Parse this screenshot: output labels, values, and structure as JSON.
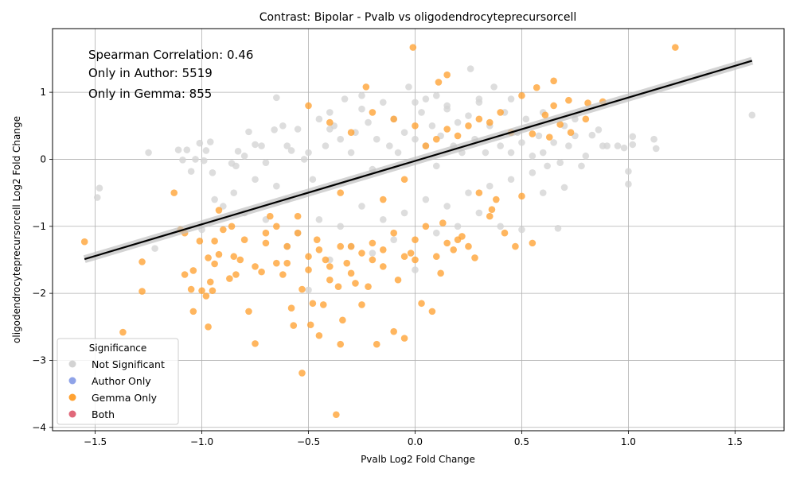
{
  "chart_data": {
    "type": "scatter",
    "title": "Contrast: Bipolar - Pvalb vs oligodendrocyteprecursorcell",
    "xlabel": "Pvalb Log2 Fold Change",
    "ylabel": "oligodendrocyteprecursorcell Log2 Fold Change",
    "xlim": [
      -1.7,
      1.73
    ],
    "ylim": [
      -4.05,
      1.95
    ],
    "xticks": [
      -1.5,
      -1.0,
      -0.5,
      0.0,
      0.5,
      1.0,
      1.5
    ],
    "xtick_labels": [
      "−1.5",
      "−1.0",
      "−0.5",
      "0.0",
      "0.5",
      "1.0",
      "1.5"
    ],
    "yticks": [
      -4,
      -3,
      -2,
      -1,
      0,
      1
    ],
    "ytick_labels": [
      "−4",
      "−3",
      "−2",
      "−1",
      "0",
      "1"
    ],
    "grid": true,
    "annotations": [
      "Spearman Correlation: 0.46",
      "Only in Author: 5519",
      "Only in Gemma: 855"
    ],
    "legend": {
      "title": "Significance",
      "placement": "lower-left",
      "entries": [
        {
          "label": "Not Significant",
          "color": "#d3d3d3"
        },
        {
          "label": "Author Only",
          "color": "#8fa3e8"
        },
        {
          "label": "Gemma Only",
          "color": "#ffa232"
        },
        {
          "label": "Both",
          "color": "#e0687a"
        }
      ]
    },
    "regression_line": {
      "x": [
        -1.55,
        1.58
      ],
      "y": [
        -1.49,
        1.47
      ],
      "color": "#000000"
    },
    "series": [
      {
        "name": "Not Significant",
        "color": "#d3d3d3",
        "points": [
          [
            -1.49,
            -0.57
          ],
          [
            -1.48,
            -0.43
          ],
          [
            -1.25,
            0.1
          ],
          [
            -1.22,
            -1.33
          ],
          [
            -1.11,
            0.14
          ],
          [
            -1.09,
            -0.01
          ],
          [
            -1.07,
            0.14
          ],
          [
            -1.05,
            -0.18
          ],
          [
            -1.03,
            0.0
          ],
          [
            -1.01,
            0.24
          ],
          [
            -0.99,
            -0.02
          ],
          [
            -0.98,
            0.13
          ],
          [
            -0.96,
            0.26
          ],
          [
            -0.94,
            -0.6
          ],
          [
            -0.86,
            -0.06
          ],
          [
            -0.84,
            -0.1
          ],
          [
            -0.83,
            0.12
          ],
          [
            -0.8,
            0.05
          ],
          [
            -0.78,
            0.41
          ],
          [
            -0.75,
            0.22
          ],
          [
            -0.72,
            0.2
          ],
          [
            -0.7,
            -0.05
          ],
          [
            -0.66,
            0.44
          ],
          [
            -0.65,
            0.92
          ],
          [
            -0.62,
            0.5
          ],
          [
            -0.6,
            0.2
          ],
          [
            -0.58,
            0.13
          ],
          [
            -0.55,
            0.45
          ],
          [
            -0.52,
            0.0
          ],
          [
            -0.5,
            0.1
          ],
          [
            -0.48,
            -0.3
          ],
          [
            -0.45,
            0.6
          ],
          [
            -0.42,
            0.2
          ],
          [
            -0.4,
            0.7
          ],
          [
            -0.38,
            0.5
          ],
          [
            -0.35,
            0.3
          ],
          [
            -0.33,
            0.9
          ],
          [
            -0.3,
            0.1
          ],
          [
            -0.28,
            0.4
          ],
          [
            -0.25,
            0.75
          ],
          [
            -0.22,
            0.55
          ],
          [
            -0.2,
            -0.15
          ],
          [
            -0.18,
            0.3
          ],
          [
            -0.15,
            0.85
          ],
          [
            -0.12,
            0.2
          ],
          [
            -0.1,
            0.6
          ],
          [
            -0.08,
            0.1
          ],
          [
            -0.05,
            0.4
          ],
          [
            -0.03,
            1.08
          ],
          [
            0.0,
            0.3
          ],
          [
            0.03,
            0.7
          ],
          [
            0.05,
            0.2
          ],
          [
            0.08,
            0.5
          ],
          [
            0.1,
            -0.1
          ],
          [
            0.12,
            0.35
          ],
          [
            0.15,
            0.8
          ],
          [
            0.18,
            0.2
          ],
          [
            0.2,
            0.55
          ],
          [
            0.22,
            0.1
          ],
          [
            0.25,
            0.65
          ],
          [
            0.26,
            1.35
          ],
          [
            0.28,
            0.3
          ],
          [
            0.3,
            0.9
          ],
          [
            0.33,
            0.1
          ],
          [
            0.35,
            0.5
          ],
          [
            0.37,
            1.08
          ],
          [
            0.4,
            0.2
          ],
          [
            0.42,
            0.7
          ],
          [
            0.45,
            0.1
          ],
          [
            0.48,
            0.4
          ],
          [
            0.5,
            0.25
          ],
          [
            0.52,
            0.6
          ],
          [
            0.55,
            0.05
          ],
          [
            0.58,
            0.35
          ],
          [
            0.6,
            0.1
          ],
          [
            0.62,
            -0.1
          ],
          [
            0.65,
            0.25
          ],
          [
            0.68,
            -0.05
          ],
          [
            0.7,
            -0.42
          ],
          [
            0.72,
            0.2
          ],
          [
            0.75,
            0.35
          ],
          [
            0.78,
            -0.1
          ],
          [
            0.8,
            0.05
          ],
          [
            0.83,
            0.36
          ],
          [
            0.86,
            0.44
          ],
          [
            0.88,
            0.2
          ],
          [
            0.9,
            0.2
          ],
          [
            0.95,
            0.2
          ],
          [
            0.98,
            0.17
          ],
          [
            1.0,
            -0.18
          ],
          [
            1.0,
            -0.37
          ],
          [
            1.02,
            0.34
          ],
          [
            1.02,
            0.22
          ],
          [
            1.12,
            0.3
          ],
          [
            1.13,
            0.16
          ],
          [
            1.58,
            0.66
          ],
          [
            -0.5,
            -1.95
          ],
          [
            -0.4,
            -1.5
          ],
          [
            -0.3,
            -1.3
          ],
          [
            -0.2,
            -1.4
          ],
          [
            -0.1,
            -1.2
          ],
          [
            0.0,
            -1.65
          ],
          [
            0.1,
            -1.1
          ],
          [
            0.2,
            -1.0
          ],
          [
            0.3,
            -0.8
          ],
          [
            0.4,
            -1.0
          ],
          [
            0.5,
            -1.05
          ],
          [
            0.6,
            -0.5
          ],
          [
            0.67,
            -1.03
          ],
          [
            -0.6,
            -1.3
          ],
          [
            -0.7,
            -0.9
          ],
          [
            -0.8,
            -0.8
          ],
          [
            -0.9,
            -0.7
          ],
          [
            -1.0,
            -1.05
          ],
          [
            -0.55,
            -1.1
          ],
          [
            -0.45,
            -0.9
          ],
          [
            -0.35,
            -1.0
          ],
          [
            -0.25,
            -0.7
          ],
          [
            -0.15,
            -0.9
          ],
          [
            -0.05,
            -0.8
          ],
          [
            0.05,
            -0.6
          ],
          [
            0.15,
            -0.7
          ],
          [
            0.25,
            -0.5
          ],
          [
            0.35,
            -0.4
          ],
          [
            0.45,
            -0.3
          ],
          [
            0.55,
            -0.2
          ],
          [
            -0.65,
            -0.4
          ],
          [
            -0.75,
            -0.3
          ],
          [
            -0.85,
            -0.5
          ],
          [
            -0.95,
            -0.2
          ],
          [
            0.0,
            0.85
          ],
          [
            0.05,
            0.9
          ],
          [
            0.3,
            0.85
          ],
          [
            -0.25,
            0.95
          ],
          [
            0.1,
            0.95
          ],
          [
            0.15,
            0.75
          ],
          [
            0.45,
            0.9
          ],
          [
            0.6,
            0.7
          ],
          [
            -0.4,
            0.45
          ],
          [
            -0.6,
            -0.6
          ],
          [
            0.7,
            0.5
          ],
          [
            0.75,
            0.6
          ]
        ]
      },
      {
        "name": "Gemma Only",
        "color": "#ffa232",
        "points": [
          [
            -1.55,
            -1.23
          ],
          [
            -1.37,
            -2.58
          ],
          [
            -1.28,
            -1.53
          ],
          [
            -1.28,
            -1.97
          ],
          [
            -1.13,
            -0.5
          ],
          [
            -1.08,
            -1.72
          ],
          [
            -1.08,
            -1.1
          ],
          [
            -1.05,
            -1.94
          ],
          [
            -1.04,
            -2.27
          ],
          [
            -1.04,
            -1.66
          ],
          [
            -1.01,
            -1.22
          ],
          [
            -1.0,
            -1.96
          ],
          [
            -0.98,
            -2.04
          ],
          [
            -0.97,
            -1.47
          ],
          [
            -0.97,
            -2.5
          ],
          [
            -0.96,
            -1.83
          ],
          [
            -0.95,
            -1.96
          ],
          [
            -0.94,
            -1.56
          ],
          [
            -0.94,
            -1.22
          ],
          [
            -0.92,
            -0.76
          ],
          [
            -0.92,
            -1.42
          ],
          [
            -0.87,
            -1.78
          ],
          [
            -0.86,
            -1.0
          ],
          [
            -0.85,
            -1.45
          ],
          [
            -0.84,
            -1.72
          ],
          [
            -0.82,
            -1.5
          ],
          [
            -0.78,
            -2.27
          ],
          [
            -0.75,
            -2.75
          ],
          [
            -0.75,
            -1.6
          ],
          [
            -0.72,
            -1.68
          ],
          [
            -0.7,
            -1.25
          ],
          [
            -0.68,
            -0.85
          ],
          [
            -0.65,
            -1.55
          ],
          [
            -0.62,
            -1.72
          ],
          [
            -0.6,
            -1.3
          ],
          [
            -0.58,
            -2.22
          ],
          [
            -0.57,
            -2.48
          ],
          [
            -0.55,
            -1.1
          ],
          [
            -0.53,
            -1.94
          ],
          [
            -0.53,
            -3.19
          ],
          [
            -0.5,
            -1.65
          ],
          [
            -0.49,
            -2.47
          ],
          [
            -0.48,
            -2.15
          ],
          [
            -0.46,
            -1.2
          ],
          [
            -0.45,
            -2.63
          ],
          [
            -0.43,
            -2.17
          ],
          [
            -0.42,
            -1.5
          ],
          [
            -0.4,
            -1.8
          ],
          [
            -0.37,
            -3.81
          ],
          [
            -0.36,
            -1.9
          ],
          [
            -0.35,
            -2.76
          ],
          [
            -0.34,
            -2.4
          ],
          [
            -0.32,
            -1.55
          ],
          [
            -0.3,
            -1.7
          ],
          [
            -0.28,
            -1.85
          ],
          [
            -0.25,
            -2.17
          ],
          [
            -0.22,
            -1.9
          ],
          [
            -0.2,
            -1.5
          ],
          [
            -0.18,
            -2.76
          ],
          [
            -0.15,
            -1.6
          ],
          [
            -0.1,
            -2.57
          ],
          [
            -0.08,
            -1.8
          ],
          [
            -0.05,
            -2.67
          ],
          [
            -0.02,
            -1.4
          ],
          [
            0.0,
            -1.2
          ],
          [
            0.03,
            -2.15
          ],
          [
            0.05,
            -1.0
          ],
          [
            0.08,
            -2.27
          ],
          [
            0.1,
            -1.45
          ],
          [
            0.12,
            -1.7
          ],
          [
            0.15,
            -1.25
          ],
          [
            0.2,
            -1.2
          ],
          [
            0.25,
            -1.3
          ],
          [
            0.28,
            -1.47
          ],
          [
            0.3,
            -0.5
          ],
          [
            0.35,
            -0.85
          ],
          [
            0.38,
            -0.6
          ],
          [
            0.42,
            -1.1
          ],
          [
            0.47,
            -1.3
          ],
          [
            0.5,
            -0.55
          ],
          [
            0.55,
            -1.25
          ],
          [
            0.55,
            0.38
          ],
          [
            0.57,
            1.07
          ],
          [
            0.61,
            0.66
          ],
          [
            0.63,
            0.33
          ],
          [
            0.65,
            1.17
          ],
          [
            0.65,
            0.8
          ],
          [
            0.68,
            0.52
          ],
          [
            0.72,
            0.88
          ],
          [
            0.73,
            0.4
          ],
          [
            0.8,
            0.6
          ],
          [
            0.81,
            0.84
          ],
          [
            0.88,
            0.86
          ],
          [
            1.22,
            1.67
          ],
          [
            -0.01,
            1.67
          ],
          [
            0.15,
            1.26
          ],
          [
            0.11,
            1.15
          ],
          [
            -0.23,
            1.08
          ],
          [
            -0.55,
            -0.85
          ],
          [
            -0.35,
            -0.5
          ],
          [
            -0.15,
            -0.6
          ],
          [
            -0.05,
            -0.3
          ],
          [
            0.05,
            0.2
          ],
          [
            0.1,
            0.3
          ],
          [
            0.15,
            0.45
          ],
          [
            0.2,
            0.35
          ],
          [
            0.25,
            0.5
          ],
          [
            0.3,
            0.6
          ],
          [
            0.35,
            0.55
          ],
          [
            0.4,
            0.7
          ],
          [
            0.45,
            0.4
          ],
          [
            0.5,
            0.95
          ],
          [
            0.0,
            0.5
          ],
          [
            -0.1,
            0.6
          ],
          [
            -0.2,
            0.7
          ],
          [
            -0.3,
            0.4
          ],
          [
            -0.4,
            0.55
          ],
          [
            -0.5,
            0.8
          ],
          [
            -0.65,
            -1.0
          ],
          [
            -0.8,
            -1.2
          ],
          [
            -0.9,
            -1.05
          ],
          [
            -0.45,
            -1.35
          ],
          [
            -0.35,
            -1.3
          ],
          [
            -0.25,
            -1.4
          ],
          [
            -0.15,
            -1.35
          ],
          [
            -0.05,
            -1.45
          ],
          [
            0.18,
            -1.35
          ],
          [
            0.22,
            -1.15
          ],
          [
            0.36,
            -0.75
          ],
          [
            -1.1,
            -1.05
          ],
          [
            -0.7,
            -1.1
          ],
          [
            -0.6,
            -1.55
          ],
          [
            -0.5,
            -1.45
          ],
          [
            -0.4,
            -1.6
          ],
          [
            -0.3,
            -1.3
          ],
          [
            -0.2,
            -1.25
          ],
          [
            -0.1,
            -1.1
          ],
          [
            0.0,
            -1.5
          ],
          [
            0.13,
            -0.95
          ]
        ]
      },
      {
        "name": "Author Only",
        "color": "#8fa3e8",
        "points": []
      },
      {
        "name": "Both",
        "color": "#e0687a",
        "points": []
      }
    ]
  }
}
